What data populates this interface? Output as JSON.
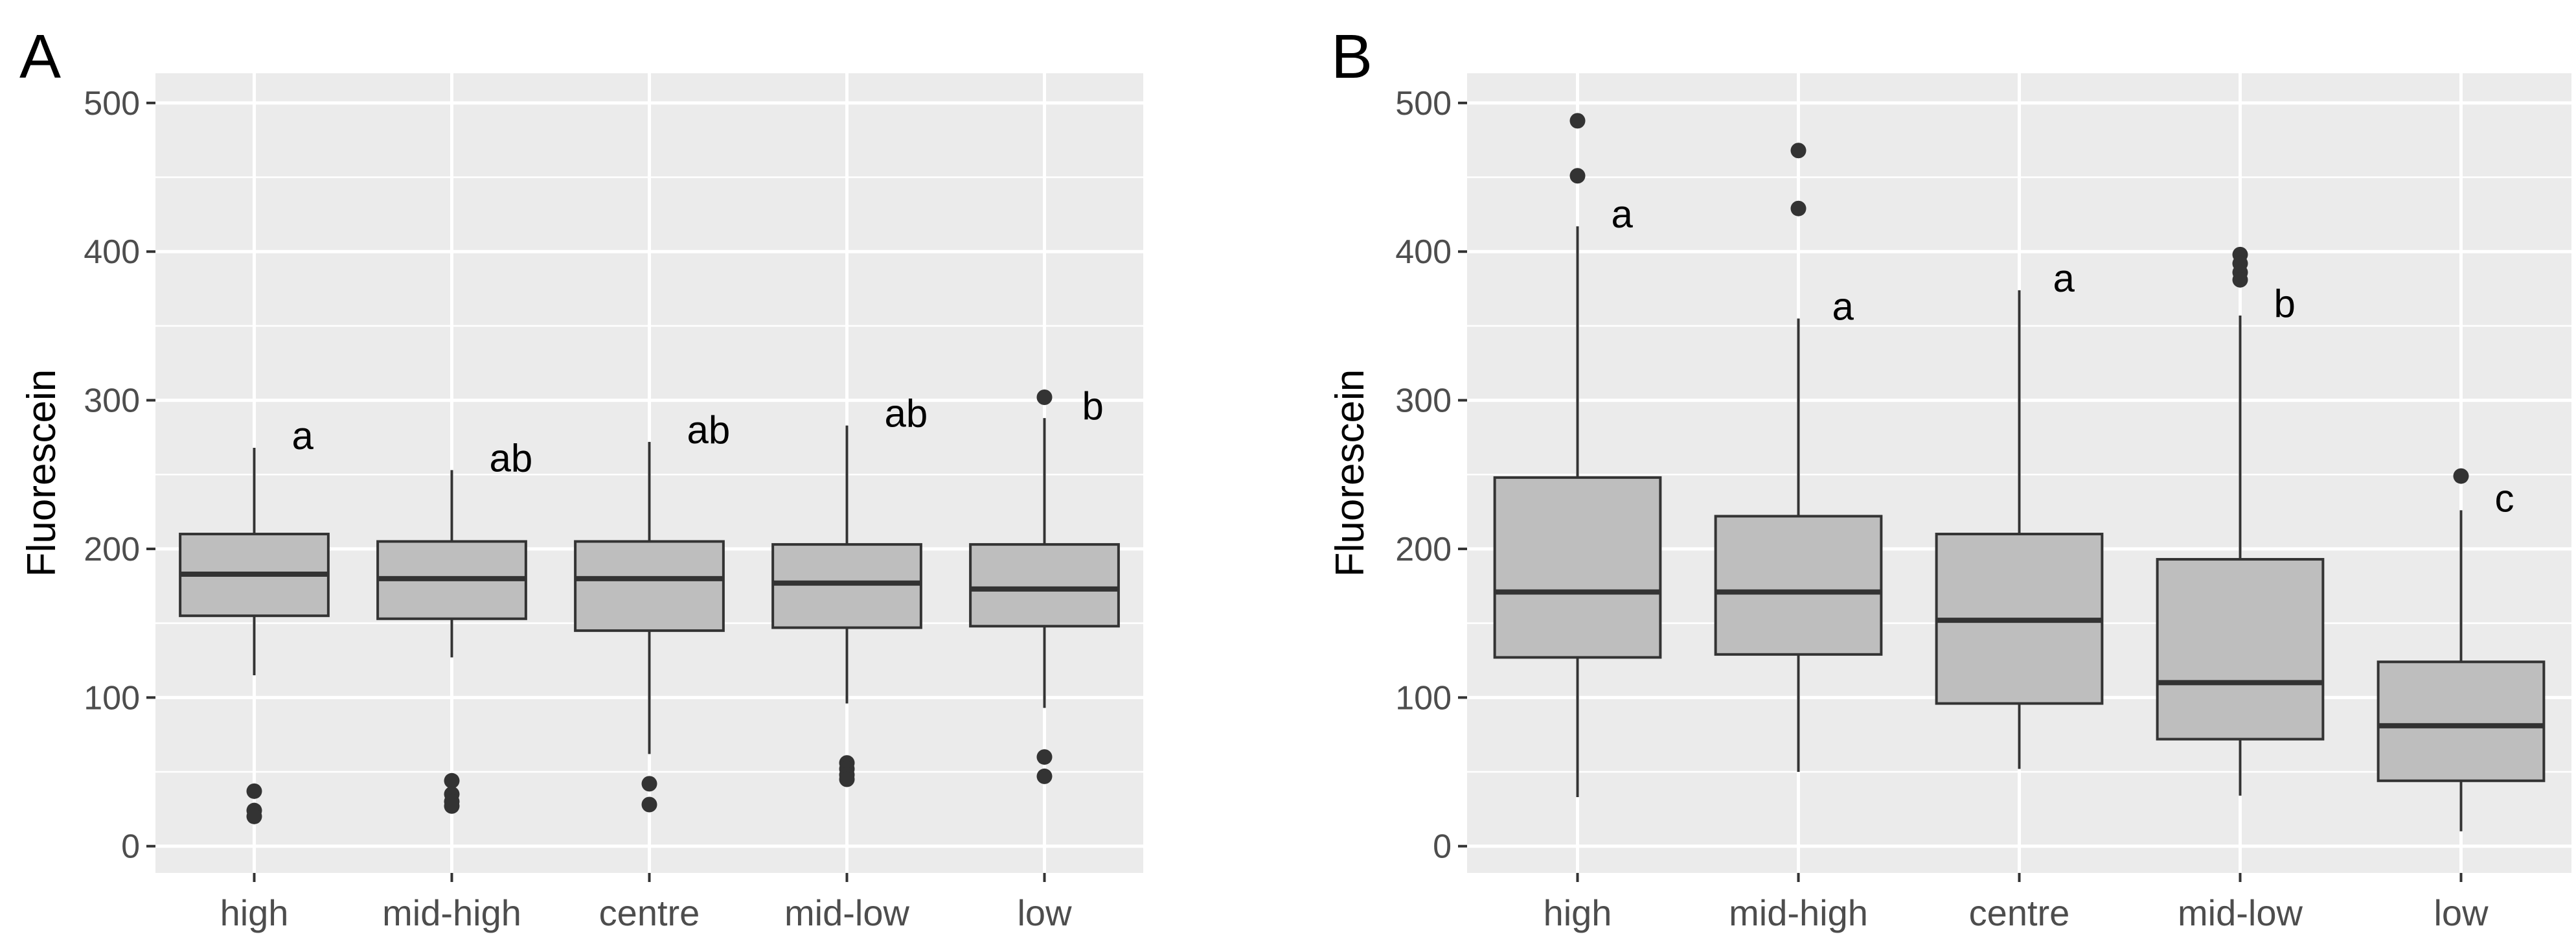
{
  "chart_data": [
    {
      "type": "box",
      "panel_label": "A",
      "ylabel": "Fluorescein",
      "xlabel": "",
      "ylim": [
        -18,
        520
      ],
      "yticks": [
        0,
        100,
        200,
        300,
        400,
        500
      ],
      "categories": [
        "high",
        "mid-high",
        "centre",
        "mid-low",
        "low"
      ],
      "boxes": [
        {
          "category": "high",
          "whisker_low": 115,
          "q1": 155,
          "median": 183,
          "q3": 210,
          "whisker_high": 268,
          "outliers": [
            37,
            24,
            20
          ],
          "sig": "a"
        },
        {
          "category": "mid-high",
          "whisker_low": 127,
          "q1": 153,
          "median": 180,
          "q3": 205,
          "whisker_high": 253,
          "outliers": [
            44,
            35,
            30,
            27
          ],
          "sig": "ab"
        },
        {
          "category": "centre",
          "whisker_low": 62,
          "q1": 145,
          "median": 180,
          "q3": 205,
          "whisker_high": 272,
          "outliers": [
            42,
            28
          ],
          "sig": "ab"
        },
        {
          "category": "mid-low",
          "whisker_low": 96,
          "q1": 147,
          "median": 177,
          "q3": 203,
          "whisker_high": 283,
          "outliers": [
            56,
            52,
            48,
            45
          ],
          "sig": "ab"
        },
        {
          "category": "low",
          "whisker_low": 93,
          "q1": 148,
          "median": 173,
          "q3": 203,
          "whisker_high": 288,
          "outliers": [
            302,
            60,
            47
          ],
          "sig": "b"
        }
      ]
    },
    {
      "type": "box",
      "panel_label": "B",
      "ylabel": "Fluorescein",
      "xlabel": "",
      "ylim": [
        -18,
        520
      ],
      "yticks": [
        0,
        100,
        200,
        300,
        400,
        500
      ],
      "categories": [
        "high",
        "mid-high",
        "centre",
        "mid-low",
        "low"
      ],
      "boxes": [
        {
          "category": "high",
          "whisker_low": 33,
          "q1": 127,
          "median": 171,
          "q3": 248,
          "whisker_high": 417,
          "outliers": [
            488,
            451
          ],
          "sig": "a"
        },
        {
          "category": "mid-high",
          "whisker_low": 50,
          "q1": 129,
          "median": 171,
          "q3": 222,
          "whisker_high": 355,
          "outliers": [
            468,
            429
          ],
          "sig": "a"
        },
        {
          "category": "centre",
          "whisker_low": 52,
          "q1": 96,
          "median": 152,
          "q3": 210,
          "whisker_high": 374,
          "outliers": [],
          "sig": "a"
        },
        {
          "category": "mid-low",
          "whisker_low": 34,
          "q1": 72,
          "median": 110,
          "q3": 193,
          "whisker_high": 357,
          "outliers": [
            398,
            392,
            386,
            381
          ],
          "sig": "b"
        },
        {
          "category": "low",
          "whisker_low": 10,
          "q1": 44,
          "median": 81,
          "q3": 124,
          "whisker_high": 226,
          "outliers": [
            249
          ],
          "sig": "c"
        }
      ]
    }
  ],
  "colors": {
    "panel_bg": "#ebebeb",
    "grid": "#ffffff",
    "box_fill": "#bebebe",
    "box_stroke": "#333333",
    "point": "#333333",
    "tick_text": "#4d4d4d",
    "tick_mark": "#333333"
  }
}
